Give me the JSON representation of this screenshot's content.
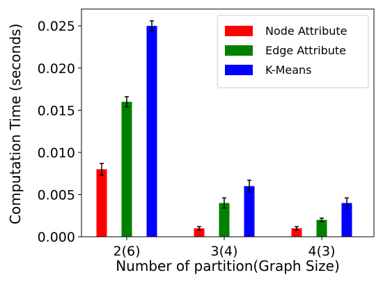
{
  "chart_data": {
    "type": "bar",
    "xlabel": "Number of partition(Graph Size)",
    "ylabel": "Computation Time (seconds)",
    "categories": [
      "2(6)",
      "3(4)",
      "4(3)"
    ],
    "ylim": [
      0,
      0.027
    ],
    "yticks": [
      0.0,
      0.005,
      0.01,
      0.015,
      0.02,
      0.025
    ],
    "ytick_labels": [
      "0.000",
      "0.005",
      "0.010",
      "0.015",
      "0.020",
      "0.025"
    ],
    "series": [
      {
        "name": "Node Attribute",
        "color": "#ff0000",
        "values": [
          0.008,
          0.001,
          0.001
        ],
        "errors": [
          0.0007,
          0.0002,
          0.0002
        ]
      },
      {
        "name": "Edge Attribute",
        "color": "#008000",
        "values": [
          0.016,
          0.004,
          0.002
        ],
        "errors": [
          0.0006,
          0.0006,
          0.0002
        ]
      },
      {
        "name": "K-Means",
        "color": "#0000ff",
        "values": [
          0.025,
          0.006,
          0.004
        ],
        "errors": [
          0.0006,
          0.0007,
          0.0006
        ]
      }
    ],
    "legend": {
      "position": "top-right"
    },
    "grid": false
  }
}
